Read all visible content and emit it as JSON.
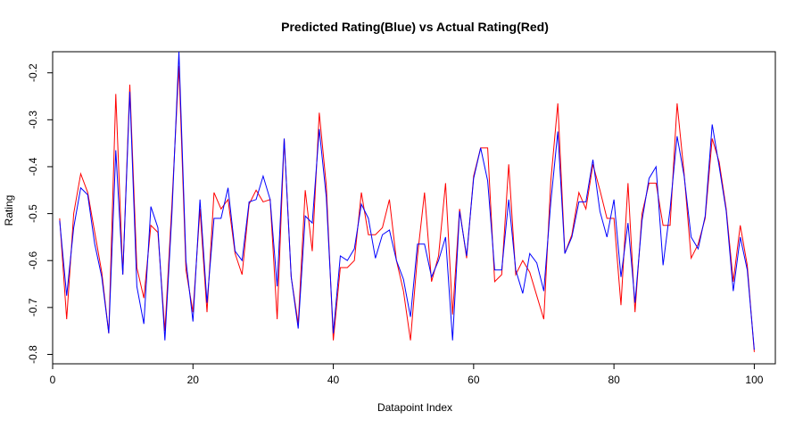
{
  "chart_data": {
    "type": "line",
    "title": "Predicted Rating(Blue) vs Actual Rating(Red)",
    "xlabel": "Datapoint Index",
    "ylabel": "Rating",
    "xlim": [
      0,
      103
    ],
    "ylim": [
      -0.82,
      -0.155
    ],
    "xticks": [
      0,
      20,
      40,
      60,
      80,
      100
    ],
    "yticks": [
      -0.8,
      -0.7,
      -0.6,
      -0.5,
      -0.4,
      -0.3,
      -0.2
    ],
    "xtick_labels": [
      "0",
      "20",
      "40",
      "60",
      "80",
      "100"
    ],
    "ytick_labels": [
      "-0.8",
      "-0.7",
      "-0.6",
      "-0.5",
      "-0.4",
      "-0.3",
      "-0.2"
    ],
    "grid": false,
    "legend": "none",
    "x": [
      1,
      2,
      3,
      4,
      5,
      6,
      7,
      8,
      9,
      10,
      11,
      12,
      13,
      14,
      15,
      16,
      17,
      18,
      19,
      20,
      21,
      22,
      23,
      24,
      25,
      26,
      27,
      28,
      29,
      30,
      31,
      32,
      33,
      34,
      35,
      36,
      37,
      38,
      39,
      40,
      41,
      42,
      43,
      44,
      45,
      46,
      47,
      48,
      49,
      50,
      51,
      52,
      53,
      54,
      55,
      56,
      57,
      58,
      59,
      60,
      61,
      62,
      63,
      64,
      65,
      66,
      67,
      68,
      69,
      70,
      71,
      72,
      73,
      74,
      75,
      76,
      77,
      78,
      79,
      80,
      81,
      82,
      83,
      84,
      85,
      86,
      87,
      88,
      89,
      90,
      91,
      92,
      93,
      94,
      95,
      96,
      97,
      98,
      99,
      100
    ],
    "series": [
      {
        "color": "#ff0000",
        "values": [
          -0.51,
          -0.725,
          -0.5,
          -0.415,
          -0.455,
          -0.54,
          -0.625,
          -0.755,
          -0.245,
          -0.63,
          -0.225,
          -0.615,
          -0.68,
          -0.525,
          -0.54,
          -0.75,
          -0.48,
          -0.185,
          -0.62,
          -0.71,
          -0.49,
          -0.71,
          -0.455,
          -0.49,
          -0.47,
          -0.585,
          -0.63,
          -0.48,
          -0.45,
          -0.475,
          -0.47,
          -0.725,
          -0.34,
          -0.635,
          -0.735,
          -0.45,
          -0.58,
          -0.285,
          -0.44,
          -0.77,
          -0.615,
          -0.615,
          -0.6,
          -0.455,
          -0.545,
          -0.545,
          -0.53,
          -0.47,
          -0.6,
          -0.665,
          -0.77,
          -0.59,
          -0.455,
          -0.645,
          -0.59,
          -0.435,
          -0.715,
          -0.49,
          -0.595,
          -0.42,
          -0.36,
          -0.36,
          -0.645,
          -0.63,
          -0.395,
          -0.63,
          -0.6,
          -0.625,
          -0.675,
          -0.725,
          -0.43,
          -0.265,
          -0.585,
          -0.545,
          -0.455,
          -0.49,
          -0.395,
          -0.45,
          -0.51,
          -0.51,
          -0.695,
          -0.435,
          -0.71,
          -0.5,
          -0.435,
          -0.435,
          -0.525,
          -0.525,
          -0.265,
          -0.415,
          -0.595,
          -0.565,
          -0.51,
          -0.34,
          -0.39,
          -0.49,
          -0.645,
          -0.525,
          -0.61,
          -0.795
        ]
      },
      {
        "color": "#0000ff",
        "values": [
          -0.515,
          -0.675,
          -0.53,
          -0.445,
          -0.46,
          -0.565,
          -0.635,
          -0.755,
          -0.365,
          -0.63,
          -0.24,
          -0.655,
          -0.735,
          -0.485,
          -0.53,
          -0.77,
          -0.5,
          -0.155,
          -0.6,
          -0.73,
          -0.47,
          -0.69,
          -0.51,
          -0.51,
          -0.445,
          -0.58,
          -0.6,
          -0.475,
          -0.47,
          -0.42,
          -0.47,
          -0.655,
          -0.34,
          -0.635,
          -0.745,
          -0.505,
          -0.52,
          -0.32,
          -0.465,
          -0.755,
          -0.59,
          -0.6,
          -0.575,
          -0.48,
          -0.51,
          -0.595,
          -0.545,
          -0.535,
          -0.6,
          -0.64,
          -0.72,
          -0.565,
          -0.565,
          -0.635,
          -0.6,
          -0.55,
          -0.77,
          -0.495,
          -0.59,
          -0.425,
          -0.36,
          -0.43,
          -0.62,
          -0.62,
          -0.47,
          -0.62,
          -0.67,
          -0.585,
          -0.605,
          -0.665,
          -0.475,
          -0.325,
          -0.585,
          -0.55,
          -0.475,
          -0.475,
          -0.385,
          -0.495,
          -0.55,
          -0.47,
          -0.635,
          -0.52,
          -0.69,
          -0.515,
          -0.425,
          -0.4,
          -0.61,
          -0.49,
          -0.335,
          -0.42,
          -0.55,
          -0.575,
          -0.505,
          -0.31,
          -0.4,
          -0.495,
          -0.665,
          -0.55,
          -0.62,
          -0.79
        ]
      }
    ]
  }
}
